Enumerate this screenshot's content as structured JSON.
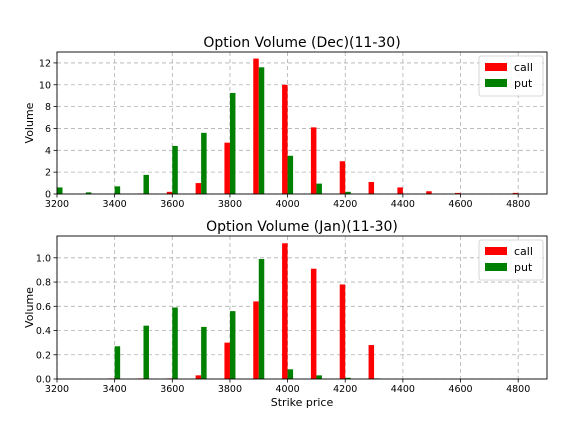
{
  "chart_data": [
    {
      "type": "bar",
      "title": "Option Volume (Dec)(11-30)",
      "xlabel": "",
      "ylabel": "Volume",
      "xlim": [
        3200,
        4900
      ],
      "ylim": [
        0,
        13
      ],
      "xticks": [
        3200,
        3400,
        3600,
        3800,
        4000,
        4200,
        4400,
        4600,
        4800
      ],
      "yticks": [
        0,
        2,
        4,
        6,
        8,
        10,
        12
      ],
      "grid": true,
      "legend_position": "top-right",
      "series": [
        {
          "name": "call",
          "color": "#ff0000",
          "x": [
            3500,
            3600,
            3700,
            3800,
            3900,
            4000,
            4100,
            4200,
            4300,
            4400,
            4500,
            4600,
            4800
          ],
          "values": [
            0.05,
            0.2,
            1.0,
            4.7,
            12.4,
            10.0,
            6.1,
            3.0,
            1.1,
            0.6,
            0.25,
            0.1,
            0.1
          ]
        },
        {
          "name": "put",
          "color": "#008000",
          "x": [
            3200,
            3300,
            3400,
            3500,
            3600,
            3700,
            3800,
            3900,
            4000,
            4100,
            4200
          ],
          "values": [
            0.6,
            0.15,
            0.7,
            1.75,
            4.4,
            5.6,
            9.25,
            11.6,
            3.5,
            0.95,
            0.2
          ]
        }
      ]
    },
    {
      "type": "bar",
      "title": "Option Volume (Jan)(11-30)",
      "xlabel": "Strike price",
      "ylabel": "Volume",
      "xlim": [
        3200,
        4900
      ],
      "ylim": [
        0,
        1.18
      ],
      "xticks": [
        3200,
        3400,
        3600,
        3800,
        4000,
        4200,
        4400,
        4600,
        4800
      ],
      "yticks": [
        0.0,
        0.2,
        0.4,
        0.6,
        0.8,
        1.0
      ],
      "grid": true,
      "legend_position": "top-right",
      "series": [
        {
          "name": "call",
          "color": "#ff0000",
          "x": [
            3400,
            3500,
            3600,
            3700,
            3800,
            3900,
            4000,
            4100,
            4200,
            4300
          ],
          "values": [
            0.005,
            0.005,
            0.005,
            0.03,
            0.3,
            0.64,
            1.12,
            0.91,
            0.78,
            0.28
          ]
        },
        {
          "name": "put",
          "color": "#008000",
          "x": [
            3400,
            3500,
            3600,
            3700,
            3800,
            3900,
            4000,
            4100,
            4200,
            4300
          ],
          "values": [
            0.27,
            0.44,
            0.59,
            0.43,
            0.56,
            0.99,
            0.08,
            0.03,
            0.01,
            0.005
          ]
        }
      ]
    }
  ]
}
